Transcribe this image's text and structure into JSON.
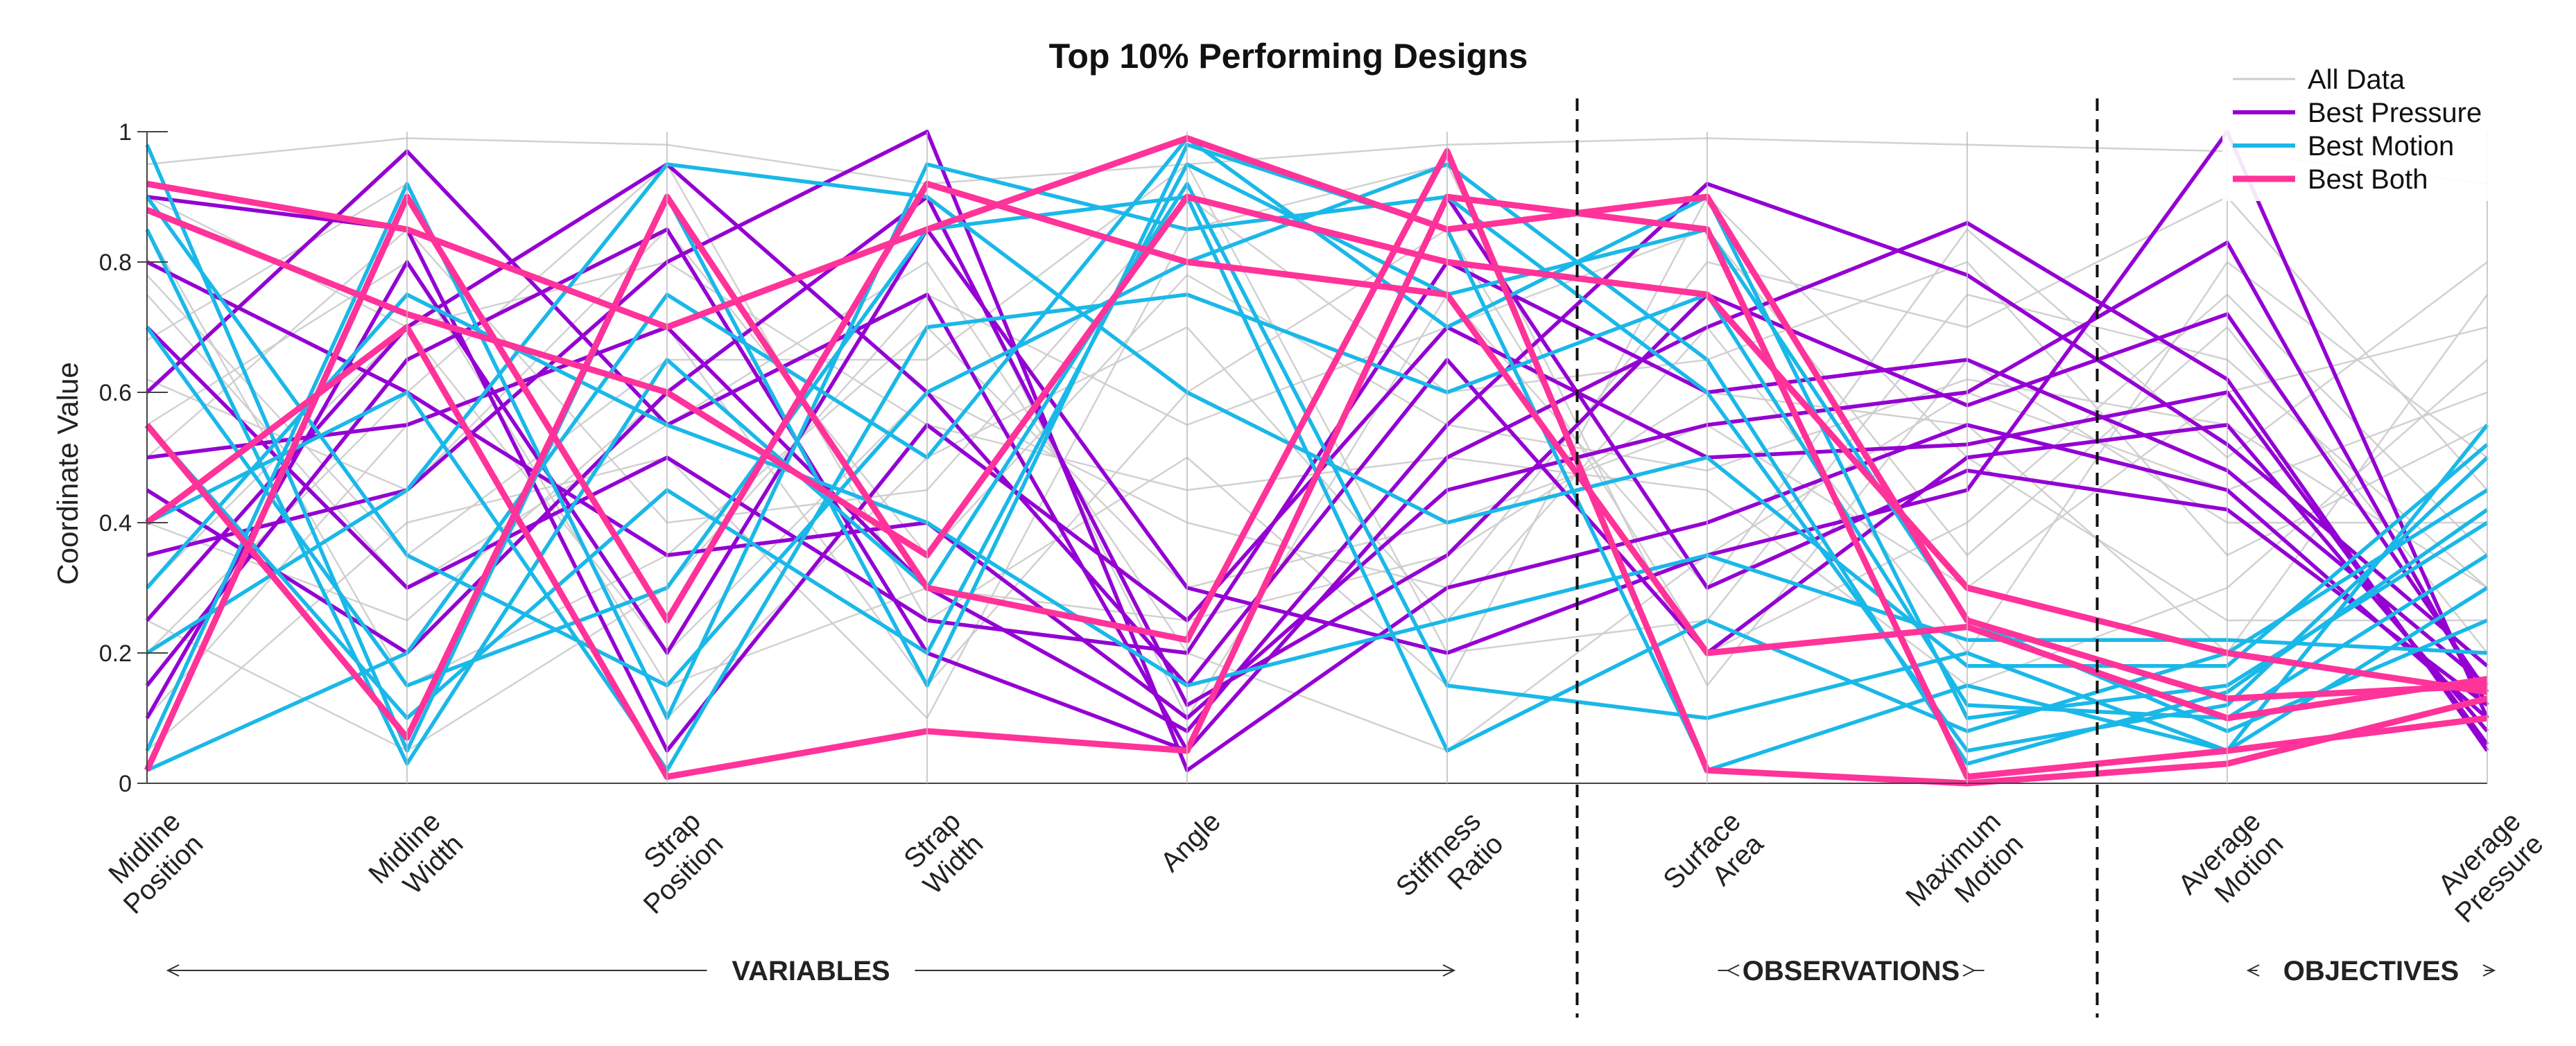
{
  "chart_data": {
    "type": "parallel-coordinates",
    "title": "Top 10% Performing Designs",
    "ylabel": "Coordinate Value",
    "ylim": [
      0,
      1
    ],
    "y_ticks": [
      "0",
      "0.2",
      "0.4",
      "0.6",
      "0.8",
      "1"
    ],
    "y_tick_values": [
      0,
      0.2,
      0.4,
      0.6,
      0.8,
      1
    ],
    "axes": [
      {
        "line1": "Midline",
        "line2": "Position"
      },
      {
        "line1": "Midline",
        "line2": "Width"
      },
      {
        "line1": "Strap",
        "line2": "Position"
      },
      {
        "line1": "Strap",
        "line2": "Width"
      },
      {
        "line1": "Angle",
        "line2": ""
      },
      {
        "line1": "Stiffness",
        "line2": "Ratio"
      },
      {
        "line1": "Surface",
        "line2": "Area"
      },
      {
        "line1": "Maximum",
        "line2": "Motion"
      },
      {
        "line1": "Average",
        "line2": "Motion"
      },
      {
        "line1": "Average",
        "line2": "Pressure"
      }
    ],
    "groups": [
      {
        "label": "VARIABLES",
        "from_axis": 0,
        "to_axis": 5
      },
      {
        "label": "OBSERVATIONS",
        "from_axis": 6,
        "to_axis": 7
      },
      {
        "label": "OBJECTIVES",
        "from_axis": 8,
        "to_axis": 9
      }
    ],
    "legend": {
      "placement": "top-right",
      "entries": [
        {
          "label": "All Data",
          "color": "#cccccc"
        },
        {
          "label": "Best Pressure",
          "color": "#9400d3"
        },
        {
          "label": "Best Motion",
          "color": "#1ab8e8"
        },
        {
          "label": "Best Both",
          "color": "#ff3399"
        }
      ]
    },
    "series": [
      {
        "name": "All Data",
        "color": "#cccccc",
        "lines": [
          [
            0.95,
            0.99,
            0.98,
            0.92,
            0.95,
            0.98,
            0.99,
            0.98,
            0.97,
            0.92
          ],
          [
            0.62,
            0.45,
            0.85,
            0.35,
            0.78,
            0.55,
            0.48,
            0.62,
            0.55,
            0.3
          ],
          [
            0.3,
            0.7,
            0.2,
            0.6,
            0.4,
            0.3,
            0.8,
            0.7,
            0.9,
            0.45
          ],
          [
            0.75,
            0.3,
            0.55,
            0.8,
            0.2,
            0.05,
            0.35,
            0.6,
            0.45,
            0.6
          ],
          [
            0.1,
            0.55,
            0.7,
            0.15,
            0.6,
            0.85,
            0.2,
            0.4,
            0.75,
            0.35
          ],
          [
            0.5,
            0.85,
            0.4,
            0.45,
            0.9,
            0.6,
            0.65,
            0.8,
            0.35,
            0.55
          ],
          [
            0.85,
            0.15,
            0.35,
            0.7,
            0.3,
            0.4,
            0.55,
            0.3,
            0.6,
            0.7
          ],
          [
            0.2,
            0.6,
            0.95,
            0.25,
            0.5,
            0.15,
            0.9,
            0.5,
            0.25,
            0.25
          ],
          [
            0.4,
            0.25,
            0.6,
            0.9,
            0.1,
            0.75,
            0.3,
            0.85,
            0.5,
            0.8
          ],
          [
            0.68,
            0.92,
            0.1,
            0.5,
            0.7,
            0.25,
            0.7,
            0.2,
            0.8,
            0.5
          ],
          [
            0.05,
            0.4,
            0.5,
            0.1,
            0.85,
            0.95,
            0.15,
            0.65,
            0.4,
            0.4
          ],
          [
            0.9,
            0.7,
            0.8,
            0.55,
            0.45,
            0.5,
            0.45,
            0.15,
            0.3,
            0.65
          ],
          [
            0.25,
            0.05,
            0.3,
            0.75,
            0.55,
            0.7,
            0.85,
            0.35,
            0.7,
            0.2
          ],
          [
            0.55,
            0.8,
            0.15,
            0.3,
            0.25,
            0.35,
            0.6,
            0.55,
            0.2,
            0.75
          ],
          [
            0.78,
            0.35,
            0.65,
            0.65,
            0.95,
            0.2,
            0.25,
            0.75,
            0.65,
            0.3
          ]
        ]
      },
      {
        "name": "Best Pressure",
        "color": "#9400d3",
        "lines": [
          [
            0.6,
            0.97,
            0.55,
            0.75,
            0.05,
            0.5,
            0.7,
            0.86,
            0.62,
            0.05
          ],
          [
            0.35,
            0.45,
            0.8,
            1.0,
            0.02,
            0.3,
            0.4,
            0.55,
            0.45,
            0.1
          ],
          [
            0.8,
            0.6,
            0.35,
            0.4,
            0.1,
            0.45,
            0.55,
            0.6,
            0.83,
            0.12
          ],
          [
            0.25,
            0.7,
            0.95,
            0.6,
            0.15,
            0.65,
            0.2,
            0.5,
            0.55,
            0.08
          ],
          [
            0.7,
            0.3,
            0.5,
            0.25,
            0.2,
            0.8,
            0.6,
            0.65,
            0.48,
            0.15
          ],
          [
            0.1,
            0.8,
            0.2,
            0.85,
            0.3,
            0.2,
            0.35,
            0.45,
            1.0,
            0.1
          ],
          [
            0.5,
            0.55,
            0.7,
            0.3,
            0.08,
            0.55,
            0.92,
            0.78,
            0.52,
            0.18
          ],
          [
            0.9,
            0.85,
            0.05,
            0.55,
            0.25,
            0.7,
            0.5,
            0.52,
            0.6,
            0.06
          ],
          [
            0.45,
            0.2,
            0.6,
            0.9,
            0.12,
            0.35,
            0.75,
            0.58,
            0.72,
            0.14
          ],
          [
            0.15,
            0.65,
            0.85,
            0.2,
            0.05,
            0.9,
            0.3,
            0.48,
            0.42,
            0.12
          ]
        ]
      },
      {
        "name": "Best Motion",
        "color": "#1ab8e8",
        "lines": [
          [
            0.98,
            0.05,
            0.9,
            0.15,
            0.98,
            0.85,
            0.02,
            0.15,
            0.05,
            0.55
          ],
          [
            0.05,
            0.92,
            0.1,
            0.95,
            0.85,
            0.9,
            0.6,
            0.05,
            0.12,
            0.5
          ],
          [
            0.02,
            0.2,
            0.75,
            0.5,
            0.99,
            0.7,
            0.9,
            0.1,
            0.15,
            0.4
          ],
          [
            0.7,
            0.15,
            0.3,
            0.85,
            0.9,
            0.05,
            0.25,
            0.08,
            0.2,
            0.45
          ],
          [
            0.4,
            0.6,
            0.02,
            0.7,
            0.75,
            0.6,
            0.75,
            0.12,
            0.1,
            0.35
          ],
          [
            0.85,
            0.03,
            0.65,
            0.3,
            0.92,
            0.15,
            0.1,
            0.2,
            0.05,
            0.3
          ],
          [
            0.2,
            0.45,
            0.95,
            0.9,
            0.6,
            0.4,
            0.5,
            0.18,
            0.18,
            0.52
          ],
          [
            0.55,
            0.1,
            0.45,
            0.2,
            0.95,
            0.75,
            0.85,
            0.25,
            0.08,
            0.25
          ],
          [
            0.9,
            0.35,
            0.15,
            0.6,
            0.8,
            0.95,
            0.65,
            0.03,
            0.14,
            0.42
          ],
          [
            0.3,
            0.75,
            0.55,
            0.4,
            0.15,
            0.25,
            0.35,
            0.22,
            0.22,
            0.2
          ]
        ]
      },
      {
        "name": "Best Both",
        "color": "#ff3399",
        "lines": [
          [
            0.92,
            0.85,
            0.7,
            0.85,
            0.99,
            0.85,
            0.9,
            0.25,
            0.13,
            0.15
          ],
          [
            0.55,
            0.07,
            0.9,
            0.3,
            0.22,
            0.97,
            0.02,
            0.0,
            0.03,
            0.13
          ],
          [
            0.02,
            0.9,
            0.25,
            0.92,
            0.8,
            0.75,
            0.2,
            0.24,
            0.1,
            0.16
          ],
          [
            0.4,
            0.7,
            0.01,
            0.08,
            0.05,
            0.9,
            0.85,
            0.01,
            0.05,
            0.1
          ],
          [
            0.88,
            0.72,
            0.6,
            0.35,
            0.9,
            0.8,
            0.75,
            0.3,
            0.2,
            0.14
          ]
        ]
      }
    ]
  }
}
